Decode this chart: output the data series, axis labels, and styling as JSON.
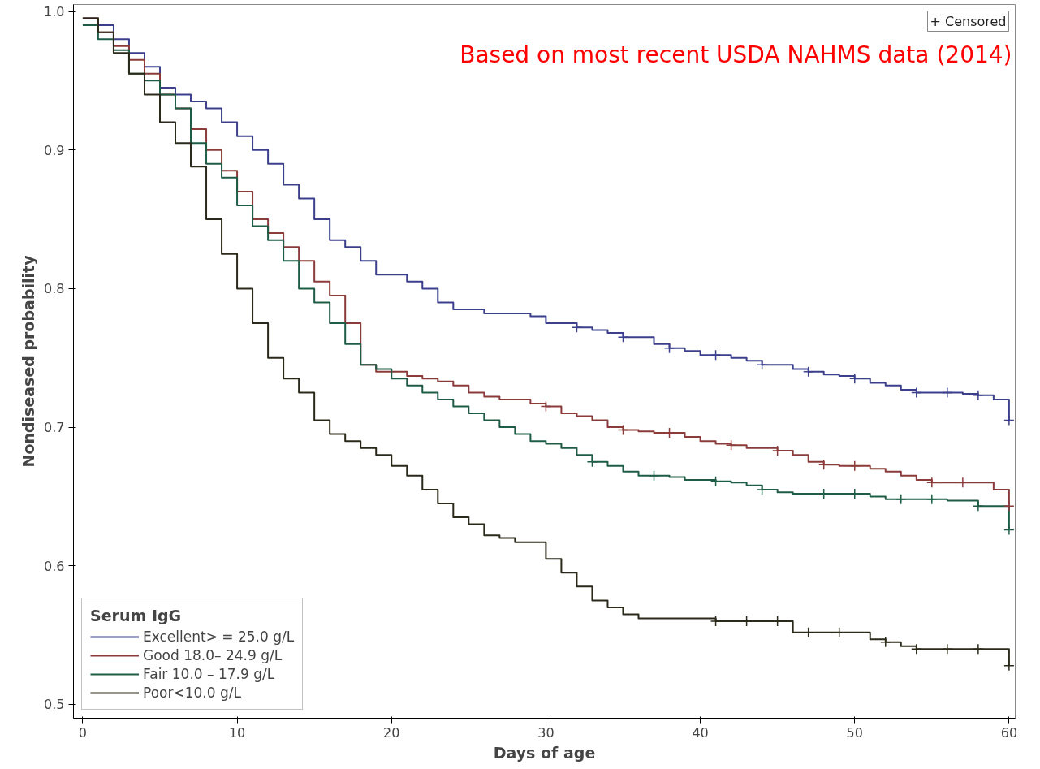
{
  "chart_data": {
    "type": "step",
    "xlabel": "Days of age",
    "ylabel": "Nondiseased probability",
    "legend_title": "Serum IgG",
    "legend": "bottom left",
    "grid": false,
    "line_style": "solid",
    "annotations": [
      "+ Censored",
      "Based on most recent USDA NAHMS data (2014)"
    ],
    "xlim": [
      -0.6,
      60.4
    ],
    "xticks": [
      0,
      10,
      20,
      30,
      40,
      50,
      60
    ],
    "ylim": [
      0.49,
      1.005
    ],
    "yticks": [
      0.5,
      0.6,
      0.7,
      0.8,
      0.9,
      {
        "value": 1.0,
        "label": "1.0"
      }
    ],
    "x": [
      0,
      1,
      2,
      3,
      4,
      5,
      6,
      7,
      8,
      9,
      10,
      11,
      12,
      13,
      14,
      15,
      16,
      17,
      18,
      19,
      20,
      21,
      22,
      23,
      24,
      25,
      26,
      27,
      28,
      29,
      30,
      31,
      32,
      33,
      34,
      35,
      36,
      37,
      38,
      39,
      40,
      41,
      42,
      43,
      44,
      45,
      46,
      47,
      48,
      49,
      50,
      51,
      52,
      53,
      54,
      55,
      56,
      57,
      58,
      59,
      60
    ],
    "series": [
      {
        "name": "Excellent> = 25.0 g/L",
        "color": "#3b3f8c",
        "values": [
          0.995,
          0.99,
          0.98,
          0.97,
          0.96,
          0.945,
          0.94,
          0.935,
          0.93,
          0.92,
          0.91,
          0.9,
          0.89,
          0.875,
          0.865,
          0.85,
          0.835,
          0.83,
          0.82,
          0.81,
          0.81,
          0.805,
          0.8,
          0.79,
          0.785,
          0.785,
          0.782,
          0.782,
          0.782,
          0.78,
          0.775,
          0.775,
          0.772,
          0.77,
          0.768,
          0.765,
          0.765,
          0.76,
          0.757,
          0.755,
          0.752,
          0.752,
          0.75,
          0.748,
          0.745,
          0.745,
          0.742,
          0.74,
          0.738,
          0.737,
          0.735,
          0.732,
          0.73,
          0.727,
          0.725,
          0.725,
          0.725,
          0.724,
          0.723,
          0.72,
          0.705
        ]
      },
      {
        "name": "Good 18.0– 24.9 g/L",
        "color": "#8c3b3b",
        "values": [
          0.995,
          0.985,
          0.975,
          0.965,
          0.955,
          0.94,
          0.93,
          0.915,
          0.9,
          0.885,
          0.87,
          0.85,
          0.84,
          0.83,
          0.82,
          0.805,
          0.795,
          0.775,
          0.745,
          0.74,
          0.74,
          0.737,
          0.735,
          0.733,
          0.73,
          0.725,
          0.722,
          0.72,
          0.72,
          0.717,
          0.715,
          0.71,
          0.708,
          0.705,
          0.7,
          0.698,
          0.697,
          0.696,
          0.696,
          0.693,
          0.69,
          0.688,
          0.687,
          0.685,
          0.685,
          0.683,
          0.68,
          0.675,
          0.673,
          0.672,
          0.672,
          0.67,
          0.668,
          0.665,
          0.662,
          0.66,
          0.66,
          0.66,
          0.66,
          0.655,
          0.643
        ]
      },
      {
        "name": "Fair 10.0 – 17.9 g/L",
        "color": "#1f5c45",
        "values": [
          0.99,
          0.98,
          0.972,
          0.955,
          0.95,
          0.94,
          0.93,
          0.905,
          0.89,
          0.88,
          0.86,
          0.845,
          0.835,
          0.82,
          0.8,
          0.79,
          0.775,
          0.76,
          0.745,
          0.742,
          0.735,
          0.73,
          0.725,
          0.72,
          0.715,
          0.71,
          0.705,
          0.7,
          0.695,
          0.69,
          0.688,
          0.685,
          0.68,
          0.675,
          0.672,
          0.668,
          0.665,
          0.665,
          0.664,
          0.662,
          0.662,
          0.661,
          0.66,
          0.658,
          0.655,
          0.653,
          0.652,
          0.652,
          0.652,
          0.652,
          0.652,
          0.65,
          0.648,
          0.648,
          0.648,
          0.648,
          0.647,
          0.647,
          0.643,
          0.643,
          0.626
        ]
      },
      {
        "name": "Poor<10.0 g/L",
        "color": "#2b2a1a",
        "values": [
          0.995,
          0.985,
          0.97,
          0.955,
          0.94,
          0.92,
          0.905,
          0.888,
          0.85,
          0.825,
          0.8,
          0.775,
          0.75,
          0.735,
          0.725,
          0.705,
          0.695,
          0.69,
          0.685,
          0.68,
          0.672,
          0.665,
          0.655,
          0.645,
          0.635,
          0.63,
          0.622,
          0.62,
          0.617,
          0.617,
          0.605,
          0.595,
          0.585,
          0.575,
          0.57,
          0.565,
          0.562,
          0.562,
          0.562,
          0.562,
          0.562,
          0.56,
          0.56,
          0.56,
          0.56,
          0.56,
          0.552,
          0.552,
          0.552,
          0.552,
          0.552,
          0.547,
          0.545,
          0.542,
          0.54,
          0.54,
          0.54,
          0.54,
          0.54,
          0.54,
          0.528
        ]
      },
      {
        "type": "scatter",
        "marker": "cross",
        "x": [
          32,
          35,
          38,
          41,
          44,
          47,
          50,
          54,
          56,
          58,
          60,
          30,
          35,
          38,
          42,
          45,
          48,
          50,
          55,
          57,
          60,
          33,
          37,
          41,
          44,
          48,
          50,
          53,
          55,
          58,
          60,
          41,
          43,
          45,
          47,
          49,
          52,
          54,
          56,
          58,
          60
        ],
        "values": [
          0.772,
          0.765,
          0.757,
          0.752,
          0.745,
          0.74,
          0.735,
          0.725,
          0.725,
          0.723,
          0.705,
          0.715,
          0.698,
          0.696,
          0.687,
          0.683,
          0.673,
          0.672,
          0.66,
          0.66,
          0.643,
          0.675,
          0.665,
          0.661,
          0.655,
          0.652,
          0.652,
          0.648,
          0.648,
          0.643,
          0.626,
          0.56,
          0.56,
          0.56,
          0.552,
          0.552,
          0.545,
          0.54,
          0.54,
          0.54,
          0.528
        ],
        "colors": [
          "#3b3f8c",
          "#3b3f8c",
          "#3b3f8c",
          "#3b3f8c",
          "#3b3f8c",
          "#3b3f8c",
          "#3b3f8c",
          "#3b3f8c",
          "#3b3f8c",
          "#3b3f8c",
          "#3b3f8c",
          "#8c3b3b",
          "#8c3b3b",
          "#8c3b3b",
          "#8c3b3b",
          "#8c3b3b",
          "#8c3b3b",
          "#8c3b3b",
          "#8c3b3b",
          "#8c3b3b",
          "#8c3b3b",
          "#1f5c45",
          "#1f5c45",
          "#1f5c45",
          "#1f5c45",
          "#1f5c45",
          "#1f5c45",
          "#1f5c45",
          "#1f5c45",
          "#1f5c45",
          "#1f5c45",
          "#2b2a1a",
          "#2b2a1a",
          "#2b2a1a",
          "#2b2a1a",
          "#2b2a1a",
          "#2b2a1a",
          "#2b2a1a",
          "#2b2a1a",
          "#2b2a1a",
          "#2b2a1a"
        ]
      }
    ]
  }
}
